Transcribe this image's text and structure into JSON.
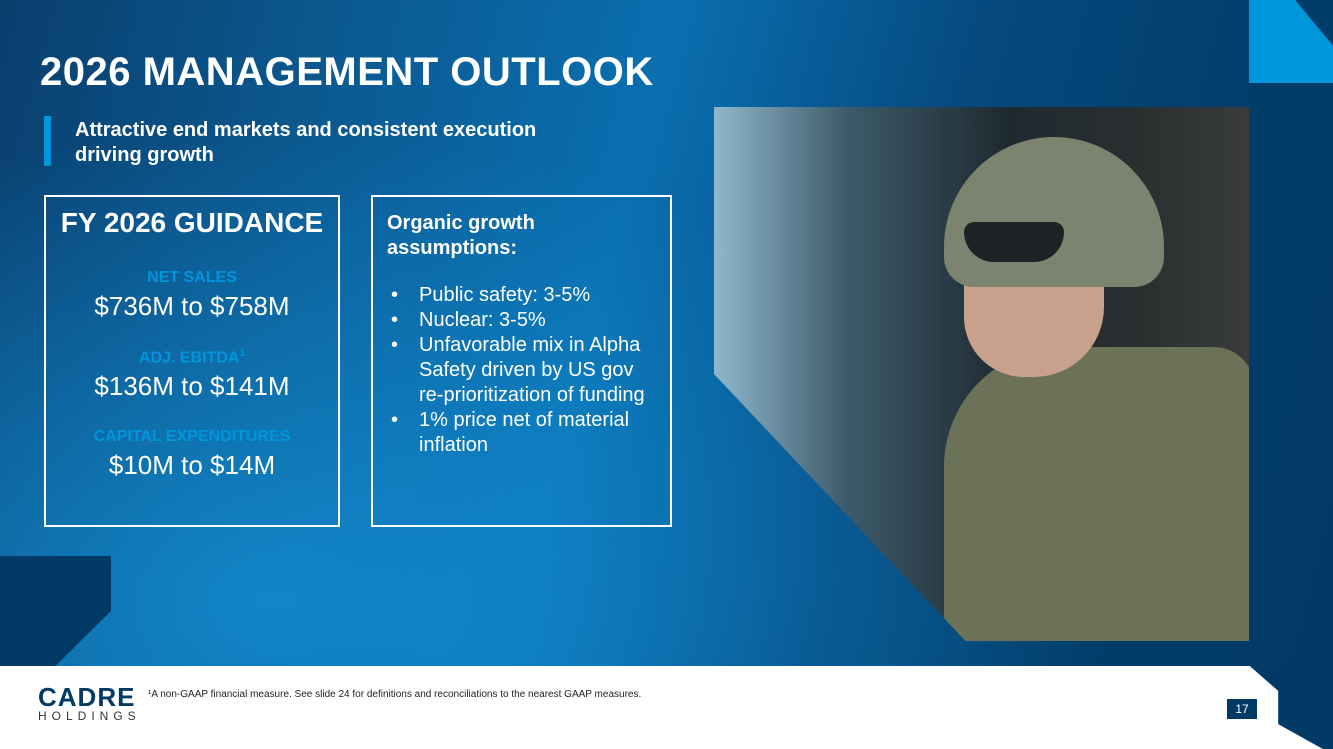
{
  "title": "2026 MANAGEMENT OUTLOOK",
  "subtitle": "Attractive end markets and consistent execution driving growth",
  "guidance": {
    "heading": "FY 2026 GUIDANCE",
    "items": [
      {
        "label": "NET SALES",
        "sup": "",
        "value": "$736M to $758M"
      },
      {
        "label": "ADJ. EBITDA",
        "sup": "1",
        "value": "$136M to $141M"
      },
      {
        "label": "CAPITAL EXPENDITURES",
        "sup": "",
        "value": "$10M to $14M"
      }
    ]
  },
  "assumptions": {
    "heading": "Organic growth assumptions:",
    "bullets": [
      "Public safety: 3-5%",
      "Nuclear: 3-5%",
      "Unfavorable mix in Alpha Safety driven by US gov re-prioritization of funding",
      "1% price net of material inflation"
    ]
  },
  "footer": {
    "logo_top": "CADRE",
    "logo_bottom": "HOLDINGS",
    "footnote": "¹A non-GAAP financial measure. See slide 24 for definitions and reconciliations to the nearest GAAP measures.",
    "page_number": "17"
  },
  "colors": {
    "navy": "#023a66",
    "accent": "#0096dc"
  }
}
